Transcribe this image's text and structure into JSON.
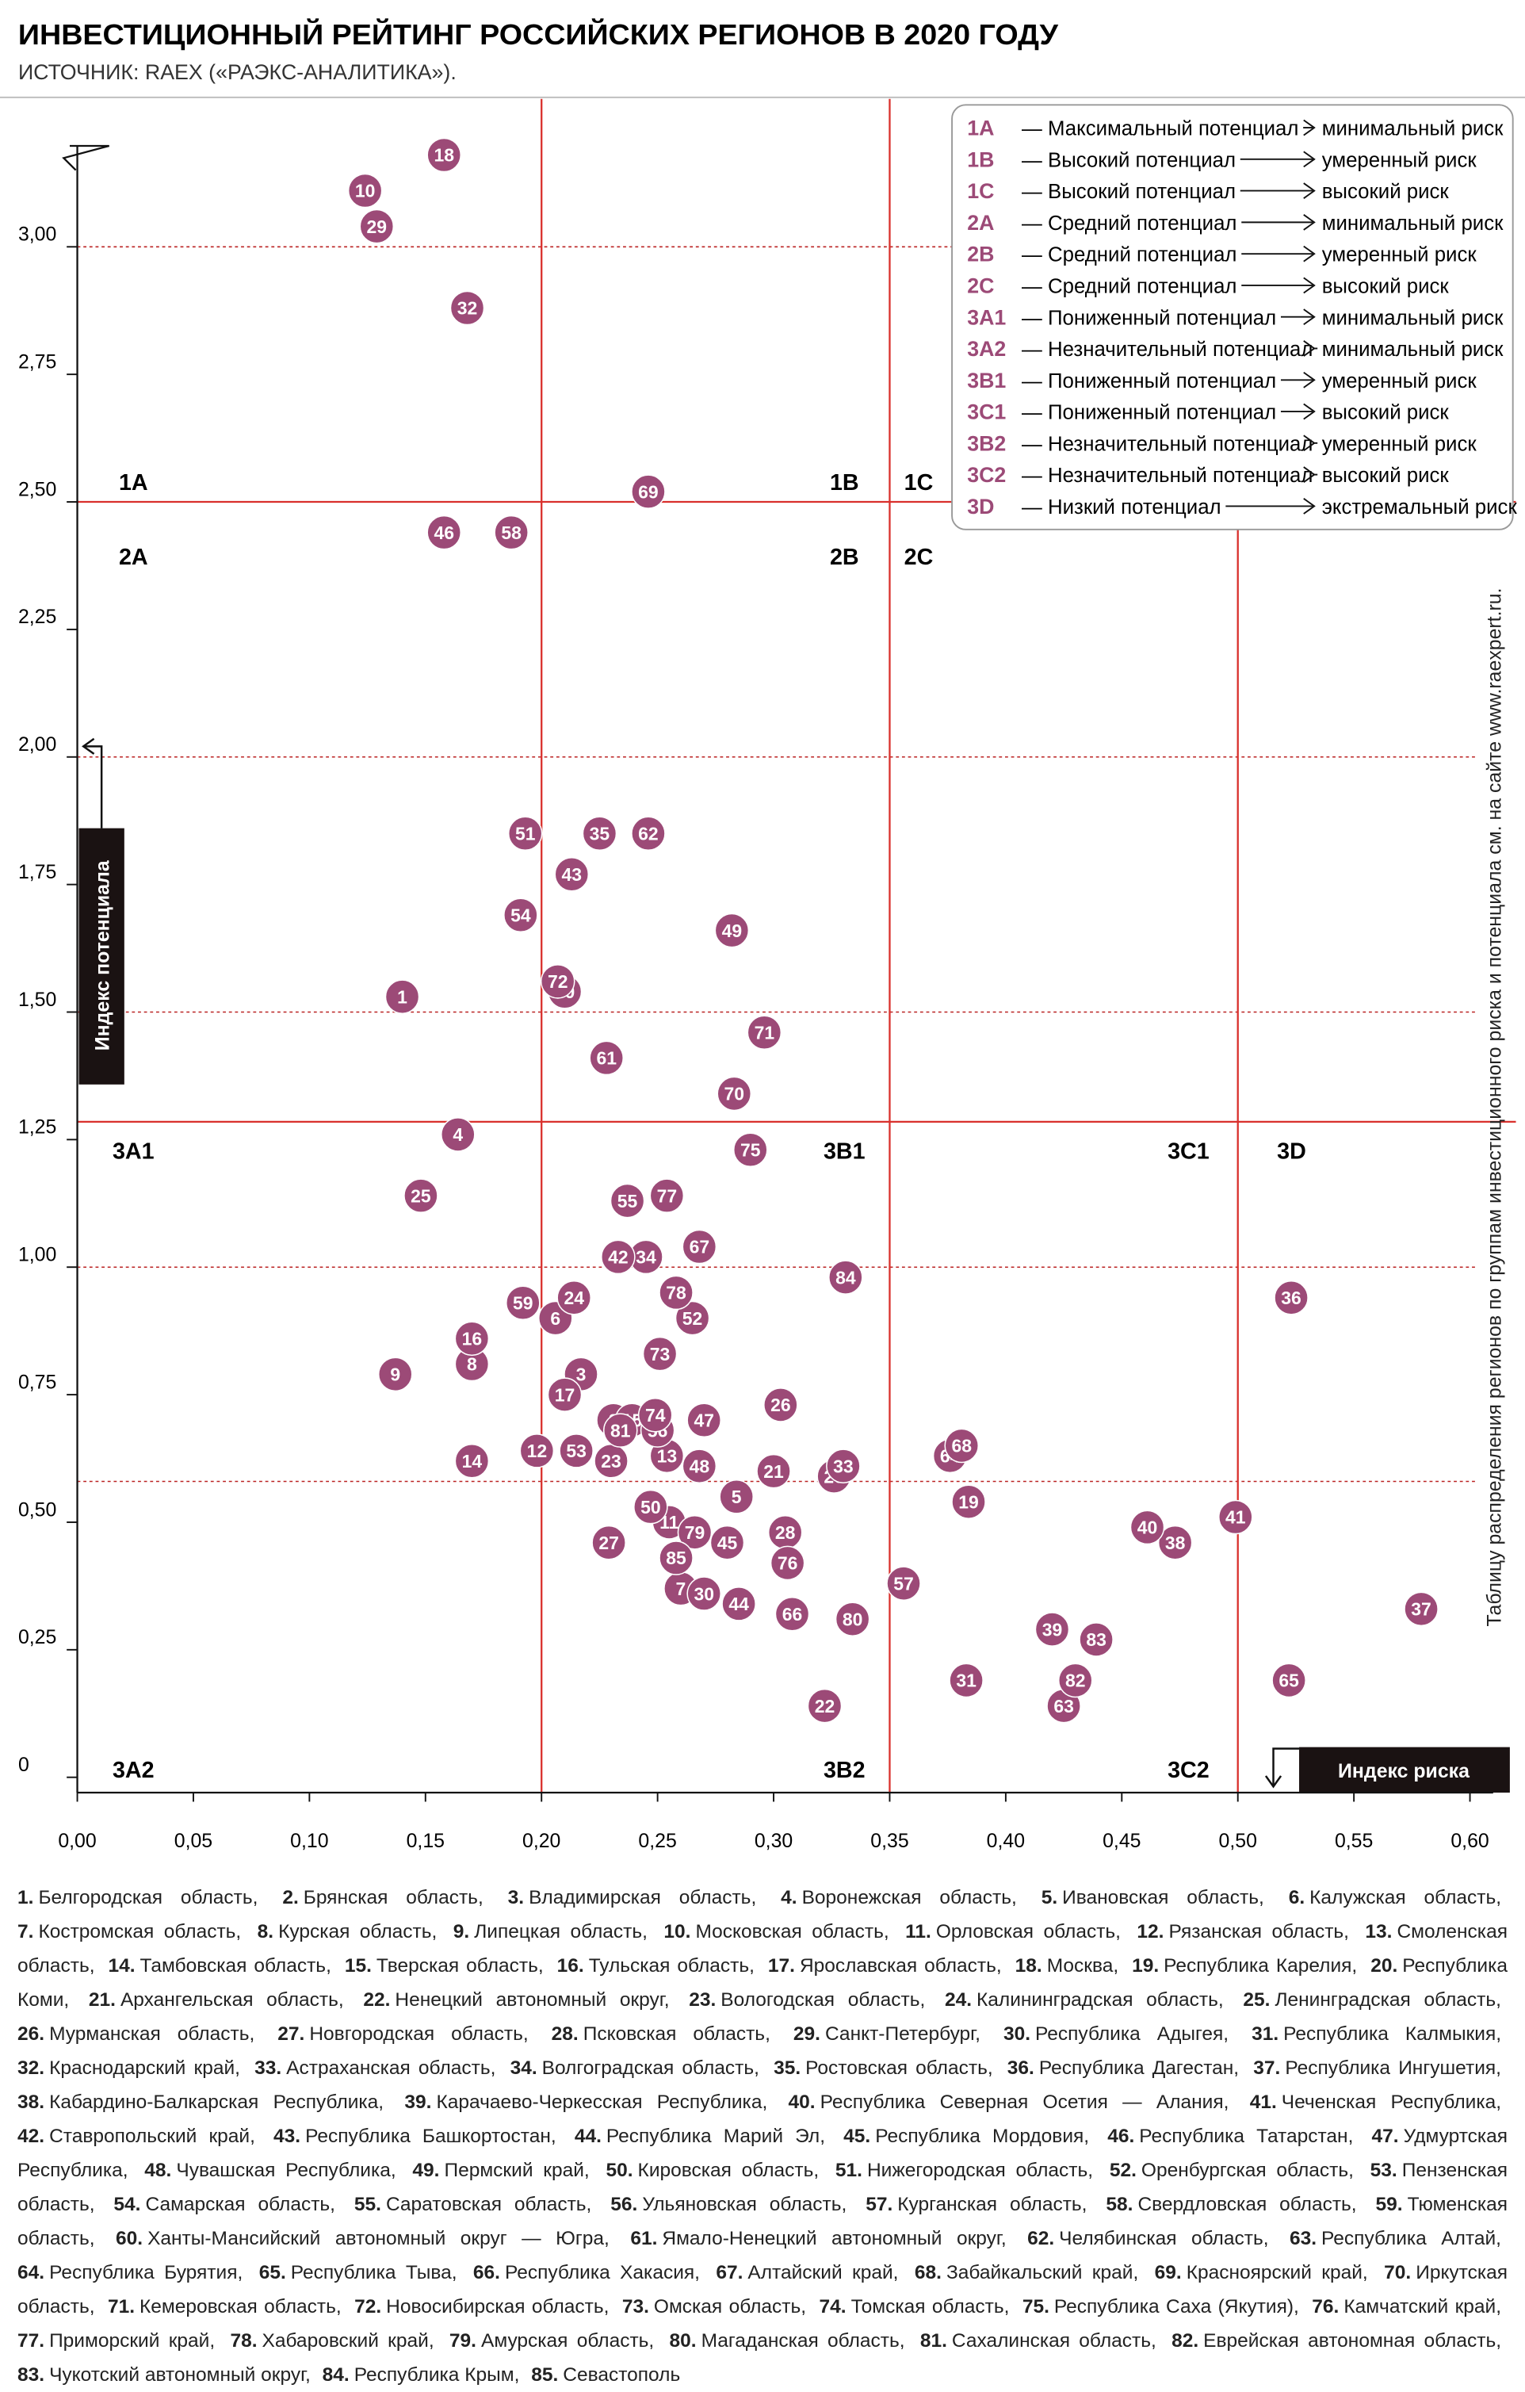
{
  "chart_data": {
    "type": "scatter",
    "title": "ИНВЕСТИЦИОННЫЙ РЕЙТИНГ РОССИЙСКИХ РЕГИОНОВ В 2020 ГОДУ",
    "subtitle": "ИСТОЧНИК: RAEX («РАЭКС-АНАЛИТИКА»).",
    "x_label": "Индекс риска",
    "y_label": "Индекс потенциала",
    "note": "Таблицу распределения регионов по группам инвестиционного риска и потенциала см. на сайте www.raexpert.ru.",
    "color": "#9c4a77",
    "xlim": [
      0,
      0.61
    ],
    "ylim": [
      -0.03,
      3.29
    ],
    "xticks": [
      {
        "value": 0,
        "label": "0,00"
      },
      {
        "value": 0.05,
        "label": "0,05"
      },
      {
        "value": 0.1,
        "label": "0,10"
      },
      {
        "value": 0.15,
        "label": "0,15"
      },
      {
        "value": 0.2,
        "label": "0,20"
      },
      {
        "value": 0.25,
        "label": "0,25"
      },
      {
        "value": 0.3,
        "label": "0,30"
      },
      {
        "value": 0.35,
        "label": "0,35"
      },
      {
        "value": 0.4,
        "label": "0,40"
      },
      {
        "value": 0.45,
        "label": "0,45"
      },
      {
        "value": 0.5,
        "label": "0,50"
      },
      {
        "value": 0.55,
        "label": "0,55"
      },
      {
        "value": 0.6,
        "label": "0,60"
      }
    ],
    "yticks": [
      0,
      {
        "value": 0.25,
        "label": "0,25"
      },
      {
        "value": 0.5,
        "label": "0,50"
      },
      {
        "value": 0.75,
        "label": "0,75"
      },
      {
        "value": 1,
        "label": "1,00"
      },
      {
        "value": 1.25,
        "label": "1,25"
      },
      {
        "value": 1.5,
        "label": "1,50"
      },
      {
        "value": 1.75,
        "label": "1,75"
      },
      {
        "value": 2,
        "label": "2,00"
      },
      {
        "value": 2.25,
        "label": "2,25"
      },
      {
        "value": 2.5,
        "label": "2,50"
      },
      {
        "value": 2.75,
        "label": "2,75"
      },
      {
        "value": 3,
        "label": "3,00"
      }
    ],
    "guide_lines": [
      3.0,
      2.0,
      1.5,
      1.0,
      0.58
    ],
    "thresholds_x": [
      0.2,
      0.35,
      0.5
    ],
    "thresholds_y": [
      2.5,
      1.285
    ],
    "zones": [
      "1A",
      "1B",
      "1C",
      "2A",
      "2B",
      "2C",
      "3A1",
      "3B1",
      "3C1",
      "3D",
      "3A2",
      "3B2",
      "3C2"
    ],
    "point_labels": [
      "1",
      "2",
      "3",
      "4",
      "5",
      "6",
      "7",
      "8",
      "9",
      "10",
      "11",
      "12",
      "13",
      "14",
      "15",
      "16",
      "17",
      "18",
      "19",
      "20",
      "21",
      "22",
      "23",
      "24",
      "25",
      "26",
      "27",
      "28",
      "29",
      "30",
      "31",
      "32",
      "33",
      "34",
      "35",
      "36",
      "37",
      "38",
      "39",
      "40",
      "41",
      "42",
      "43",
      "44",
      "45",
      "46",
      "47",
      "48",
      "49",
      "50",
      "51",
      "52",
      "53",
      "54",
      "55",
      "56",
      "57",
      "58",
      "59",
      "60",
      "61",
      "62",
      "63",
      "64",
      "65",
      "66",
      "67",
      "68",
      "69",
      "70",
      "71",
      "72",
      "73",
      "74",
      "75",
      "76",
      "77",
      "78",
      "79",
      "80",
      "81",
      "82",
      "83",
      "84",
      "85"
    ],
    "x": [
      0.14,
      0.231,
      0.217,
      0.164,
      0.284,
      0.206,
      0.26,
      0.17,
      0.137,
      0.124,
      0.255,
      0.198,
      0.254,
      0.17,
      0.239,
      0.17,
      0.21,
      0.158,
      0.384,
      0.326,
      0.3,
      0.322,
      0.23,
      0.214,
      0.148,
      0.303,
      0.229,
      0.305,
      0.129,
      0.27,
      0.383,
      0.168,
      0.33,
      0.245,
      0.225,
      0.523,
      0.579,
      0.473,
      0.42,
      0.461,
      0.499,
      0.233,
      0.213,
      0.285,
      0.28,
      0.158,
      0.27,
      0.268,
      0.282,
      0.247,
      0.193,
      0.265,
      0.215,
      0.191,
      0.237,
      0.25,
      0.356,
      0.187,
      0.192,
      0.21,
      0.228,
      0.246,
      0.425,
      0.376,
      0.522,
      0.308,
      0.268,
      0.381,
      0.246,
      0.283,
      0.296,
      0.207,
      0.251,
      0.249,
      0.29,
      0.306,
      0.254,
      0.258,
      0.266,
      0.334,
      0.234,
      0.43,
      0.439,
      0.331,
      0.258
    ],
    "values": [
      1.53,
      0.7,
      0.79,
      1.26,
      0.55,
      0.9,
      0.37,
      0.81,
      0.79,
      3.11,
      0.5,
      0.64,
      0.63,
      0.62,
      0.7,
      0.86,
      0.75,
      3.18,
      0.54,
      0.59,
      0.6,
      0.14,
      0.62,
      0.94,
      1.14,
      0.73,
      0.46,
      0.48,
      3.04,
      0.36,
      0.19,
      2.88,
      0.61,
      1.02,
      1.85,
      0.94,
      0.33,
      0.46,
      0.29,
      0.49,
      0.51,
      1.02,
      1.77,
      0.34,
      0.46,
      2.44,
      0.7,
      0.61,
      1.66,
      0.53,
      1.85,
      0.9,
      0.64,
      1.69,
      1.13,
      0.68,
      0.38,
      2.44,
      0.93,
      1.54,
      1.41,
      1.85,
      0.14,
      0.63,
      0.19,
      0.32,
      1.04,
      0.65,
      2.52,
      1.34,
      1.46,
      1.56,
      0.83,
      0.71,
      1.23,
      0.42,
      1.14,
      0.95,
      0.48,
      0.31,
      0.68,
      0.19,
      0.27,
      0.98,
      0.43
    ],
    "legend": [
      {
        "code": "1A",
        "potential": "— Максимальный потенциал",
        "risk": "минимальный риск"
      },
      {
        "code": "1B",
        "potential": "— Высокий потенциал",
        "risk": "умеренный риск"
      },
      {
        "code": "1C",
        "potential": "— Высокий потенциал",
        "risk": "высокий риск"
      },
      {
        "code": "2A",
        "potential": "— Средний потенциал",
        "risk": "минимальный риск"
      },
      {
        "code": "2B",
        "potential": "— Средний потенциал",
        "risk": "умеренный риск"
      },
      {
        "code": "2C",
        "potential": "— Средний потенциал",
        "risk": "высокий риск"
      },
      {
        "code": "3A1",
        "potential": "— Пониженный потенциал",
        "risk": "минимальный риск"
      },
      {
        "code": "3A2",
        "potential": "— Незначительный потенциал",
        "risk": "минимальный риск"
      },
      {
        "code": "3B1",
        "potential": "— Пониженный потенциал",
        "risk": "умеренный риск"
      },
      {
        "code": "3C1",
        "potential": "— Пониженный потенциал",
        "risk": "высокий риск"
      },
      {
        "code": "3B2",
        "potential": "— Незначительный потенциал",
        "risk": "умеренный риск"
      },
      {
        "code": "3C2",
        "potential": "— Незначительный потенциал",
        "risk": "высокий риск"
      },
      {
        "code": "3D",
        "potential": "— Низкий потенциал",
        "risk": "экстремальный риск"
      }
    ]
  },
  "regions": [
    {
      "num": "1.",
      "name": "Белгородская область,"
    },
    {
      "num": "2.",
      "name": "Брянская область,"
    },
    {
      "num": "3.",
      "name": "Владимирская область,"
    },
    {
      "num": "4.",
      "name": "Воронежская область,"
    },
    {
      "num": "5.",
      "name": "Ивановская область,"
    },
    {
      "num": "6.",
      "name": "Калужская область,"
    },
    {
      "num": "7.",
      "name": "Костромская область,"
    },
    {
      "num": "8.",
      "name": "Курская область,"
    },
    {
      "num": "9.",
      "name": "Липецкая область,"
    },
    {
      "num": "10.",
      "name": "Московская область,"
    },
    {
      "num": "11.",
      "name": "Орловская область,"
    },
    {
      "num": "12.",
      "name": "Рязанская область,"
    },
    {
      "num": "13.",
      "name": "Смоленская область,"
    },
    {
      "num": "14.",
      "name": "Тамбовская область,"
    },
    {
      "num": "15.",
      "name": "Тверская область,"
    },
    {
      "num": "16.",
      "name": "Тульская область,"
    },
    {
      "num": "17.",
      "name": "Ярославская область,"
    },
    {
      "num": "18.",
      "name": "Москва,"
    },
    {
      "num": "19.",
      "name": "Республика Карелия,"
    },
    {
      "num": "20.",
      "name": "Республика Коми,"
    },
    {
      "num": "21.",
      "name": "Архангельская область,"
    },
    {
      "num": "22.",
      "name": "Ненецкий автономный округ,"
    },
    {
      "num": "23.",
      "name": "Вологодская область,"
    },
    {
      "num": "24.",
      "name": "Калининградская область,"
    },
    {
      "num": "25.",
      "name": "Ленинградская область,"
    },
    {
      "num": "26.",
      "name": "Мурманская область,"
    },
    {
      "num": "27.",
      "name": "Новгородская область,"
    },
    {
      "num": "28.",
      "name": "Псковская область,"
    },
    {
      "num": "29.",
      "name": "Санкт-Петербург,"
    },
    {
      "num": "30.",
      "name": "Республика Адыгея,"
    },
    {
      "num": "31.",
      "name": "Республика Калмыкия,"
    },
    {
      "num": "32.",
      "name": "Краснодарский край,"
    },
    {
      "num": "33.",
      "name": "Астраханская область,"
    },
    {
      "num": "34.",
      "name": "Волгоградская область,"
    },
    {
      "num": "35.",
      "name": "Ростовская область,"
    },
    {
      "num": "36.",
      "name": "Республика Дагестан,"
    },
    {
      "num": "37.",
      "name": "Республика Ингушетия,"
    },
    {
      "num": "38.",
      "name": "Кабардино-Балкарская Республика,"
    },
    {
      "num": "39.",
      "name": "Карачаево-Черкесская Республика,"
    },
    {
      "num": "40.",
      "name": "Республика Северная Осетия — Алания,"
    },
    {
      "num": "41.",
      "name": "Чеченская Республика,"
    },
    {
      "num": "42.",
      "name": "Ставропольский край,"
    },
    {
      "num": "43.",
      "name": "Республика Башкортостан,"
    },
    {
      "num": "44.",
      "name": "Республика Марий Эл,"
    },
    {
      "num": "45.",
      "name": "Республика Мордовия,"
    },
    {
      "num": "46.",
      "name": "Республика Татарстан,"
    },
    {
      "num": "47.",
      "name": "Удмуртская Республика,"
    },
    {
      "num": "48.",
      "name": "Чувашская Республика,"
    },
    {
      "num": "49.",
      "name": "Пермский край,"
    },
    {
      "num": "50.",
      "name": "Кировская область,"
    },
    {
      "num": "51.",
      "name": "Нижегородская область,"
    },
    {
      "num": "52.",
      "name": "Оренбургская область,"
    },
    {
      "num": "53.",
      "name": "Пензенская область,"
    },
    {
      "num": "54.",
      "name": "Самарская область,"
    },
    {
      "num": "55.",
      "name": "Саратовская область,"
    },
    {
      "num": "56.",
      "name": "Ульяновская область,"
    },
    {
      "num": "57.",
      "name": "Курганская область,"
    },
    {
      "num": "58.",
      "name": "Свердловская область,"
    },
    {
      "num": "59.",
      "name": "Тюменская область,"
    },
    {
      "num": "60.",
      "name": "Ханты-Мансийский автономный округ — Югра,"
    },
    {
      "num": "61.",
      "name": "Ямало-Ненецкий автономный округ,"
    },
    {
      "num": "62.",
      "name": "Челябинская область,"
    },
    {
      "num": "63.",
      "name": "Республика Алтай,"
    },
    {
      "num": "64.",
      "name": "Республика Бурятия,"
    },
    {
      "num": "65.",
      "name": "Республика Тыва,"
    },
    {
      "num": "66.",
      "name": "Республика Хакасия,"
    },
    {
      "num": "67.",
      "name": "Алтайский край,"
    },
    {
      "num": "68.",
      "name": "Забайкальский край,"
    },
    {
      "num": "69.",
      "name": "Красноярский край,"
    },
    {
      "num": "70.",
      "name": "Иркутская область,"
    },
    {
      "num": "71.",
      "name": "Кемеровская область,"
    },
    {
      "num": "72.",
      "name": "Новосибирская область,"
    },
    {
      "num": "73.",
      "name": "Омская область,"
    },
    {
      "num": "74.",
      "name": "Томская область,"
    },
    {
      "num": "75.",
      "name": "Республика Саха (Якутия),"
    },
    {
      "num": "76.",
      "name": "Камчатский край,"
    },
    {
      "num": "77.",
      "name": "Приморский край,"
    },
    {
      "num": "78.",
      "name": "Хабаровский край,"
    },
    {
      "num": "79.",
      "name": "Амурская область,"
    },
    {
      "num": "80.",
      "name": "Магаданская область,"
    },
    {
      "num": "81.",
      "name": "Сахалинская область,"
    },
    {
      "num": "82.",
      "name": "Еврейская автономная область,"
    },
    {
      "num": "83.",
      "name": "Чукотский автономный округ,"
    },
    {
      "num": "84.",
      "name": "Республика Крым,"
    },
    {
      "num": "85.",
      "name": "Севастополь"
    }
  ]
}
